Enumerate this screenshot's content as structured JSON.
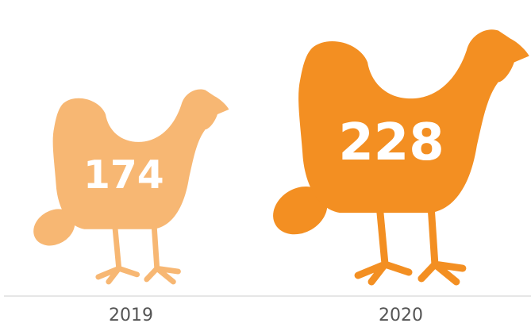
{
  "chart_data": {
    "type": "pictogram",
    "categories": [
      "2019",
      "2020"
    ],
    "values": [
      174,
      228
    ],
    "colors": [
      "#f7b773",
      "#f38f22"
    ]
  }
}
